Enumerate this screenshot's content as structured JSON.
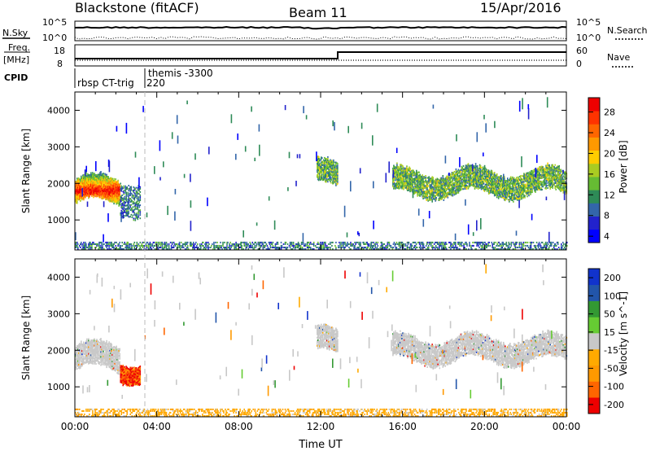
{
  "header": {
    "station": "Blackstone (fitACF)",
    "beam": "Beam 11",
    "date": "15/Apr/2016"
  },
  "panels": {
    "nsky": {
      "left_label": "N.Sky",
      "right_label": "N.Search",
      "left_ticks": [
        "10^5",
        "10^0"
      ],
      "right_ticks": [
        "10^5",
        "10^0"
      ]
    },
    "freq": {
      "left_label_line1": "Freq.",
      "left_label_line2": "[MHz]",
      "left_ticks": [
        "18",
        "8"
      ],
      "right_label": "Nave",
      "right_ticks": [
        "60",
        "0"
      ]
    },
    "cpid": {
      "label": "CPID",
      "entries": [
        "rbsp CT-trig",
        "220",
        "themis -3300"
      ]
    }
  },
  "chart_data": [
    {
      "type": "heatmap",
      "parameter": "power",
      "ylabel": "Slant Range [km]",
      "xlabel": "",
      "ylim": [
        180,
        4500
      ],
      "yticks": [
        1000,
        2000,
        3000,
        4000
      ],
      "colorbar_label": "Power [dB]",
      "colorbar_ticks": [
        "28",
        "24",
        "20",
        "16",
        "12",
        "8",
        "4"
      ],
      "colors": [
        "#0000ff",
        "#2222cc",
        "#3366aa",
        "#2e8b57",
        "#66bb33",
        "#aacc22",
        "#ffcc00",
        "#ff9900",
        "#ff6600",
        "#ff3300",
        "#ee0000"
      ],
      "echo_regions": [
        {
          "t0": 0.0,
          "t1": 2.2,
          "r0": 1250,
          "r1": 2300,
          "intensity": "high"
        },
        {
          "t0": 2.2,
          "t1": 3.2,
          "r0": 1000,
          "r1": 2400,
          "intensity": "low"
        },
        {
          "t0": 0.0,
          "t1": 24.0,
          "r0": 180,
          "r1": 400,
          "intensity": "low"
        },
        {
          "t0": 11.8,
          "t1": 12.8,
          "r0": 1700,
          "r1": 2700,
          "intensity": "medium"
        },
        {
          "t0": 15.5,
          "t1": 24.0,
          "r0": 1500,
          "r1": 2500,
          "intensity": "medium"
        }
      ]
    },
    {
      "type": "heatmap",
      "parameter": "velocity",
      "ylabel": "Slant Range [km]",
      "xlabel": "Time UT",
      "ylim": [
        180,
        4500
      ],
      "yticks": [
        1000,
        2000,
        3000,
        4000
      ],
      "xticks": [
        "00:00",
        "04:00",
        "08:00",
        "12:00",
        "16:00",
        "20:00",
        "00:00"
      ],
      "colorbar_label": "Velocity [m s^-1]",
      "colorbar_ticks": [
        "200",
        "100",
        "50",
        "15",
        "-15",
        "-50",
        "-100",
        "-200"
      ],
      "colors": [
        "#ee0000",
        "#ff6600",
        "#ff9900",
        "#ffaa00",
        "#c8c8c8",
        "#66cc33",
        "#339933",
        "#2255aa",
        "#1133cc"
      ],
      "echo_regions": [
        {
          "t0": 0.0,
          "t1": 2.2,
          "r0": 1250,
          "r1": 2300,
          "intensity": "gray"
        },
        {
          "t0": 2.2,
          "t1": 3.2,
          "r0": 1000,
          "r1": 1800,
          "intensity": "red"
        },
        {
          "t0": 0.0,
          "t1": 24.0,
          "r0": 180,
          "r1": 400,
          "intensity": "orange"
        },
        {
          "t0": 11.8,
          "t1": 12.8,
          "r0": 1700,
          "r1": 2700,
          "intensity": "gray"
        },
        {
          "t0": 15.5,
          "t1": 24.0,
          "r0": 1500,
          "r1": 2500,
          "intensity": "gray"
        }
      ]
    }
  ]
}
